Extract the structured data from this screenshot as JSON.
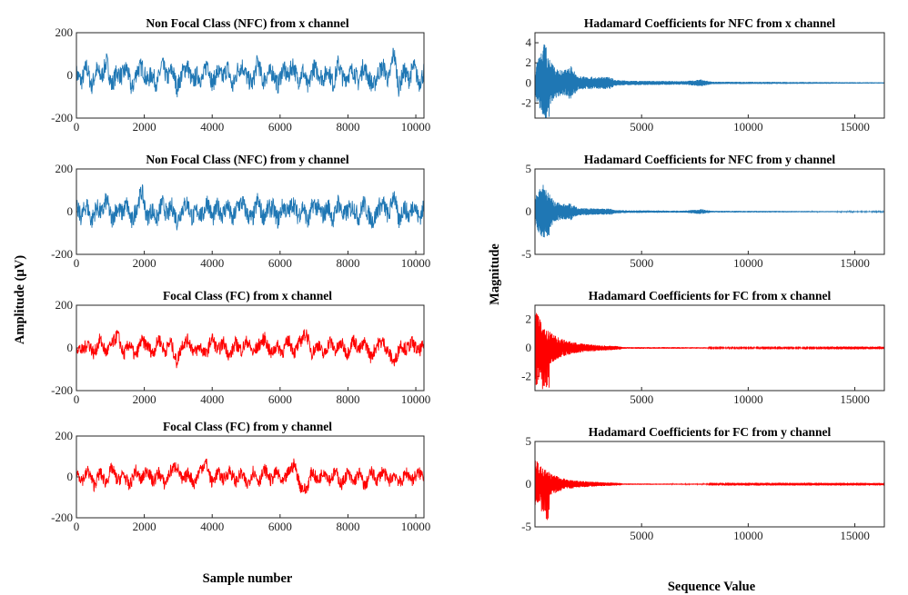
{
  "figure": {
    "left_column": {
      "ylabel": "Amplitude (µV)",
      "xlabel": "Sample number"
    },
    "right_column": {
      "ylabel": "Magnitude",
      "xlabel": "Sequence Value"
    }
  },
  "colors": {
    "nfc": "#1f77b4",
    "fc": "#ff0000",
    "axis": "#262626"
  },
  "chart_data": [
    {
      "type": "line",
      "title": "Non Focal Class (NFC)  from  x  channel",
      "series": [
        {
          "values": [
            12,
            -40,
            58,
            -70,
            35,
            -10,
            90,
            -65,
            20,
            -5,
            48,
            -92,
            30,
            55,
            -35,
            10,
            -60,
            75,
            -20,
            40,
            -80,
            15,
            65,
            -45,
            5,
            -30,
            85,
            -55,
            25,
            -15,
            50,
            -75,
            35,
            60,
            -25,
            -50,
            95,
            -40,
            10,
            20,
            -65,
            45,
            -10,
            70,
            -35,
            30,
            -85,
            55,
            15,
            -20,
            40,
            -60,
            80,
            -30,
            5,
            35,
            -45,
            62,
            -15,
            -70,
            25,
            50,
            -40,
            155,
            -80,
            30,
            -25,
            60,
            -50,
            20
          ]
        }
      ],
      "x_range": [
        0,
        10240
      ],
      "xlim": [
        0,
        10240
      ],
      "ylim": [
        -200,
        200
      ],
      "xticks": [
        "0",
        "2000",
        "4000",
        "6000",
        "8000",
        "10000"
      ],
      "yticks": [
        "-200",
        "0",
        "200"
      ],
      "color": "#1f77b4"
    },
    {
      "type": "line",
      "title": "Non Focal Class (NFC)  from  y  channel",
      "series": [
        {
          "values": [
            20,
            -35,
            50,
            -60,
            30,
            -15,
            80,
            -55,
            25,
            -10,
            45,
            -70,
            35,
            128,
            -40,
            15,
            -50,
            60,
            -25,
            35,
            -65,
            20,
            55,
            -40,
            10,
            -30,
            70,
            -45,
            30,
            -20,
            45,
            -60,
            40,
            55,
            -25,
            -45,
            75,
            -35,
            15,
            25,
            -55,
            40,
            -10,
            60,
            -30,
            35,
            -70,
            50,
            20,
            -25,
            35,
            -55,
            65,
            -30,
            10,
            30,
            -40,
            55,
            -20,
            -60,
            30,
            45,
            -35,
            120,
            -65,
            35,
            -30,
            55,
            -45,
            25
          ]
        }
      ],
      "x_range": [
        0,
        10240
      ],
      "xlim": [
        0,
        10240
      ],
      "ylim": [
        -200,
        200
      ],
      "xticks": [
        "0",
        "2000",
        "4000",
        "6000",
        "8000",
        "10000"
      ],
      "yticks": [
        "-200",
        "0",
        "200"
      ],
      "color": "#1f77b4"
    },
    {
      "type": "line",
      "title": "Focal Class (FC) from x  channel",
      "series": [
        {
          "values": [
            10,
            -20,
            35,
            -40,
            55,
            -30,
            20,
            85,
            -45,
            30,
            -60,
            45,
            15,
            -35,
            60,
            -25,
            40,
            -90,
            25,
            50,
            -30,
            10,
            -45,
            65,
            -20,
            35,
            -55,
            30,
            -15,
            45,
            -35,
            20,
            60,
            -40,
            15,
            -25,
            50,
            -30,
            40,
            95,
            -35,
            25,
            -50,
            45,
            -20,
            30,
            -40,
            55,
            -15,
            35,
            -60,
            20,
            40,
            -30,
            -95,
            25,
            -10,
            35,
            -25,
            15
          ]
        }
      ],
      "x_range": [
        0,
        10240
      ],
      "xlim": [
        0,
        10240
      ],
      "ylim": [
        -200,
        200
      ],
      "xticks": [
        "0",
        "2000",
        "4000",
        "6000",
        "8000",
        "10000"
      ],
      "yticks": [
        "-200",
        "0",
        "200"
      ],
      "color": "#ff0000"
    },
    {
      "type": "line",
      "title": "Focal Class (FC) from  y channel",
      "series": [
        {
          "values": [
            35,
            -20,
            40,
            -55,
            30,
            -40,
            60,
            -30,
            20,
            -65,
            45,
            -25,
            55,
            -35,
            30,
            -50,
            40,
            75,
            -30,
            25,
            -45,
            50,
            95,
            -40,
            30,
            -20,
            45,
            -35,
            25,
            -55,
            40,
            -30,
            50,
            -25,
            35,
            -45,
            30,
            85,
            -60,
            -90,
            40,
            -30,
            45,
            -20,
            35,
            -55,
            30,
            -40,
            25,
            -65,
            35,
            -25,
            40,
            -30,
            20,
            -45,
            30,
            -20,
            25,
            10
          ]
        }
      ],
      "x_range": [
        0,
        10240
      ],
      "xlim": [
        0,
        10240
      ],
      "ylim": [
        -200,
        200
      ],
      "xticks": [
        "0",
        "2000",
        "4000",
        "6000",
        "8000",
        "10000"
      ],
      "yticks": [
        "-200",
        "0",
        "200"
      ],
      "color": "#ff0000"
    },
    {
      "type": "line",
      "title": "Hadamard Coefficients for NFC from  x channel",
      "x_range": [
        0,
        16384
      ],
      "envelope": [
        [
          0,
          1.5
        ],
        [
          150,
          2.3
        ],
        [
          350,
          3.2
        ],
        [
          450,
          4.6
        ],
        [
          600,
          2.6
        ],
        [
          900,
          1.6
        ],
        [
          1300,
          1.2
        ],
        [
          1700,
          1.7
        ],
        [
          2000,
          0.7
        ],
        [
          2800,
          0.6
        ],
        [
          3600,
          0.6
        ],
        [
          3700,
          0.3
        ],
        [
          4500,
          0.22
        ],
        [
          7000,
          0.18
        ],
        [
          7800,
          0.35
        ],
        [
          8300,
          0.12
        ],
        [
          12000,
          0.1
        ],
        [
          16384,
          0.06
        ]
      ],
      "negative_peak": -3.5,
      "xlim": [
        0,
        16384
      ],
      "ylim": [
        -3.5,
        5
      ],
      "xticks": [
        "5000",
        "10000",
        "15000"
      ],
      "yticks": [
        "-2",
        "0",
        "2",
        "4"
      ],
      "color": "#1f77b4"
    },
    {
      "type": "line",
      "title": "Hadamard Coefficients for NFC  from  y channel",
      "x_range": [
        0,
        16384
      ],
      "envelope": [
        [
          0,
          1.6
        ],
        [
          150,
          2.4
        ],
        [
          350,
          3.5
        ],
        [
          450,
          3.0
        ],
        [
          650,
          2.2
        ],
        [
          900,
          1.2
        ],
        [
          1300,
          0.9
        ],
        [
          1700,
          1.0
        ],
        [
          2000,
          0.45
        ],
        [
          3000,
          0.35
        ],
        [
          3600,
          0.35
        ],
        [
          3700,
          0.2
        ],
        [
          4500,
          0.15
        ],
        [
          7000,
          0.12
        ],
        [
          7800,
          0.3
        ],
        [
          8300,
          0.1
        ],
        [
          12000,
          0.08
        ],
        [
          16384,
          0.05
        ]
      ],
      "negative_peak": -3.3,
      "xlim": [
        0,
        16384
      ],
      "ylim": [
        -5,
        5
      ],
      "xticks": [
        "5000",
        "10000",
        "15000"
      ],
      "yticks": [
        "-5",
        "0",
        "5"
      ],
      "color": "#1f77b4"
    },
    {
      "type": "line",
      "title": "Hadamard Coefficients for FC from x channel",
      "x_range": [
        0,
        16384
      ],
      "envelope": [
        [
          0,
          2.9
        ],
        [
          150,
          2.4
        ],
        [
          400,
          1.6
        ],
        [
          800,
          1.0
        ],
        [
          1300,
          0.6
        ],
        [
          2000,
          0.35
        ],
        [
          3000,
          0.2
        ],
        [
          4000,
          0.12
        ],
        [
          4100,
          0.06
        ],
        [
          8000,
          0.05
        ],
        [
          8100,
          0.03
        ],
        [
          16384,
          0.02
        ]
      ],
      "negative_peak": -2.9,
      "xlim": [
        0,
        16384
      ],
      "ylim": [
        -3,
        3
      ],
      "xticks": [
        "5000",
        "10000",
        "15000"
      ],
      "yticks": [
        "-2",
        "0",
        "2"
      ],
      "color": "#ff0000"
    },
    {
      "type": "line",
      "title": "Hadamard Coefficients for FC from y channel",
      "x_range": [
        0,
        16384
      ],
      "envelope": [
        [
          0,
          3.0
        ],
        [
          150,
          2.6
        ],
        [
          400,
          1.9
        ],
        [
          800,
          1.2
        ],
        [
          1300,
          0.7
        ],
        [
          2000,
          0.4
        ],
        [
          3000,
          0.25
        ],
        [
          4000,
          0.15
        ],
        [
          4100,
          0.08
        ],
        [
          8000,
          0.06
        ],
        [
          8100,
          0.04
        ],
        [
          16384,
          0.03
        ]
      ],
      "negative_peak": -4.2,
      "xlim": [
        0,
        16384
      ],
      "ylim": [
        -5,
        5
      ],
      "xticks": [
        "5000",
        "10000",
        "15000"
      ],
      "yticks": [
        "-5",
        "0",
        "5"
      ],
      "color": "#ff0000"
    }
  ]
}
